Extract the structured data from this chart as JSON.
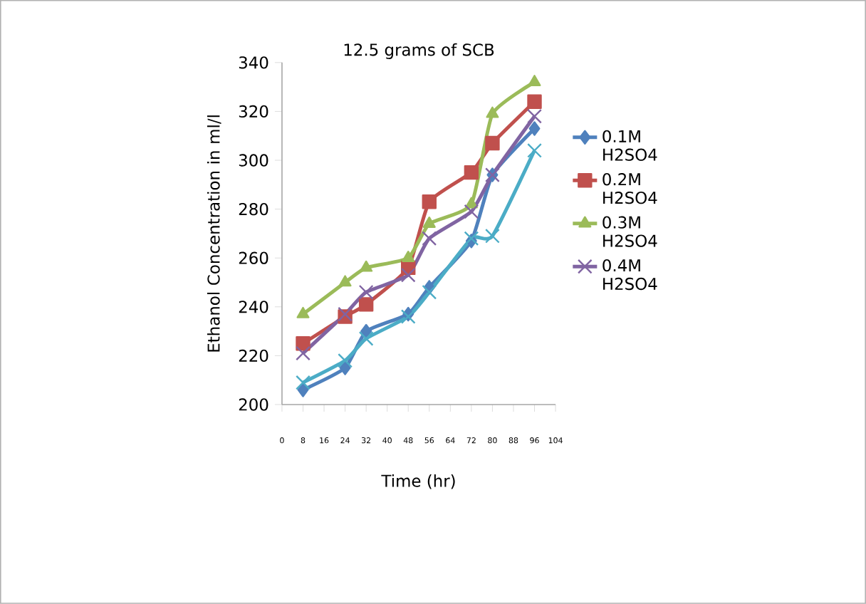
{
  "chart_data": {
    "type": "line",
    "title": "12.5 grams of SCB",
    "xlabel": "Time (hr)",
    "ylabel": "Ethanol Concentration in ml/l",
    "x": [
      8,
      24,
      32,
      48,
      56,
      72,
      80,
      96
    ],
    "xlim": [
      0,
      104
    ],
    "xticks": [
      0,
      8,
      16,
      24,
      32,
      40,
      48,
      56,
      64,
      72,
      80,
      88,
      96,
      104
    ],
    "ylim": [
      200,
      340
    ],
    "yticks": [
      200,
      220,
      240,
      260,
      280,
      300,
      320,
      340
    ],
    "grid": false,
    "legend": "right",
    "series": [
      {
        "name": "0.1M H2SO4",
        "color": "#4f81bd",
        "marker": "diamond",
        "values": [
          206,
          215,
          230,
          237,
          248,
          267,
          294,
          313
        ]
      },
      {
        "name": "0.2M H2SO4",
        "color": "#c0504d",
        "marker": "square",
        "values": [
          225,
          236,
          241,
          256,
          283,
          295,
          307,
          324
        ]
      },
      {
        "name": "0.3M H2SO4",
        "color": "#9bbb59",
        "marker": "triangle",
        "values": [
          237,
          250,
          256,
          260,
          274,
          282,
          319,
          332
        ]
      },
      {
        "name": "0.4M H2SO4",
        "color": "#8064a2",
        "marker": "cross",
        "values": [
          221,
          237,
          246,
          253,
          268,
          279,
          294,
          318
        ]
      },
      {
        "color": "#4bacc6",
        "marker": "cross",
        "values": [
          209,
          218,
          227,
          236,
          246,
          268,
          269,
          304
        ]
      }
    ]
  }
}
